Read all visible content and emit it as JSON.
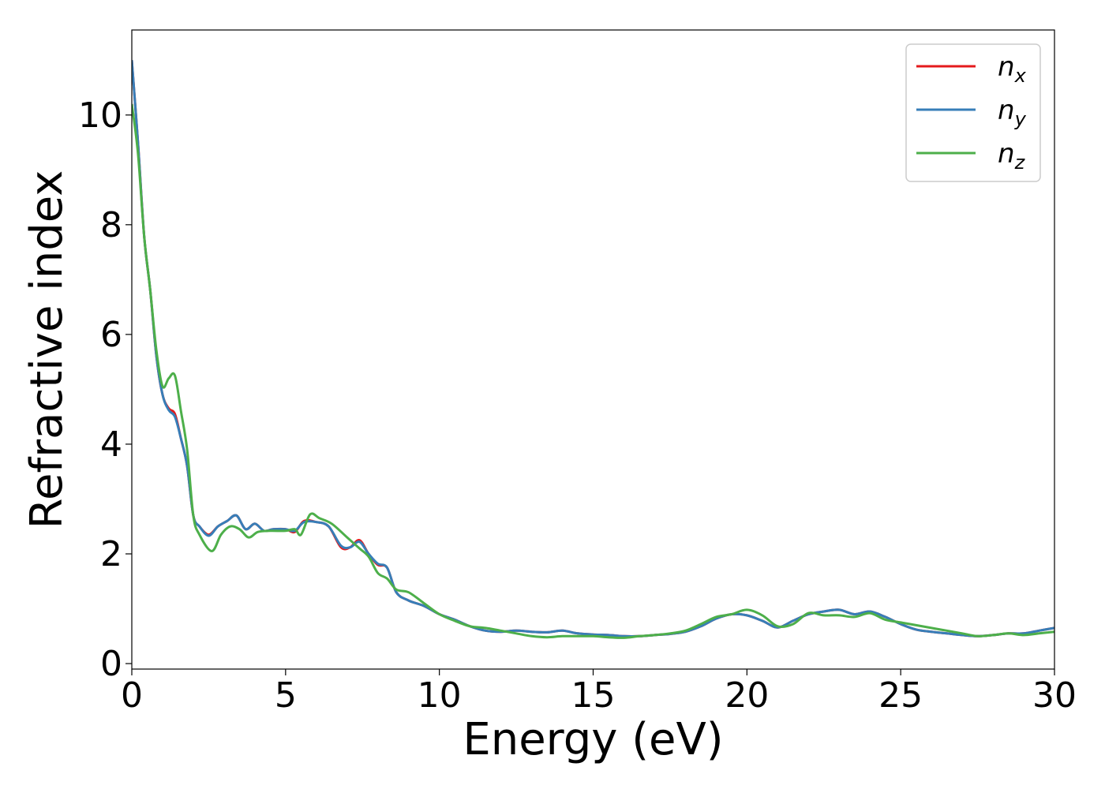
{
  "chart_data": {
    "type": "line",
    "xlabel": "Energy (eV)",
    "ylabel": "Refractive index",
    "xlim": [
      0,
      30
    ],
    "ylim": [
      -0.1,
      11.55
    ],
    "xticks": [
      0,
      5,
      10,
      15,
      20,
      25,
      30
    ],
    "yticks": [
      0,
      2,
      4,
      6,
      8,
      10
    ],
    "xtick_labels": [
      "0",
      "5",
      "10",
      "15",
      "20",
      "25",
      "30"
    ],
    "ytick_labels": [
      "0",
      "2",
      "4",
      "6",
      "8",
      "10"
    ],
    "grid": false,
    "legend_position": "top-right",
    "legend": [
      {
        "base": "n",
        "sub": "x",
        "color": "#e41a1c"
      },
      {
        "base": "n",
        "sub": "y",
        "color": "#377eb8"
      },
      {
        "base": "n",
        "sub": "z",
        "color": "#4daf4a"
      }
    ],
    "series": [
      {
        "name": "n_x",
        "color": "#e41a1c",
        "x": [
          0,
          0.2,
          0.4,
          0.6,
          0.8,
          1.0,
          1.2,
          1.4,
          1.6,
          1.8,
          2.0,
          2.2,
          2.5,
          2.8,
          3.1,
          3.4,
          3.7,
          4.0,
          4.3,
          4.6,
          5.0,
          5.3,
          5.6,
          6.0,
          6.4,
          6.8,
          7.1,
          7.4,
          7.7,
          8.0,
          8.3,
          8.6,
          9.0,
          9.5,
          10.0,
          10.5,
          11.0,
          11.5,
          12.0,
          12.5,
          13.0,
          13.5,
          14.0,
          14.5,
          15.0,
          15.5,
          16.0,
          16.5,
          17.0,
          17.5,
          18.0,
          18.5,
          19.0,
          19.5,
          20.0,
          20.5,
          21.0,
          21.5,
          22.0,
          22.5,
          23.0,
          23.5,
          24.0,
          24.5,
          25.0,
          25.5,
          26.0,
          26.5,
          27.0,
          27.5,
          28.0,
          28.5,
          29.0,
          29.5,
          30.0
        ],
        "y": [
          11.0,
          9.5,
          7.8,
          6.8,
          5.6,
          4.9,
          4.65,
          4.55,
          4.1,
          3.6,
          2.7,
          2.5,
          2.35,
          2.5,
          2.6,
          2.7,
          2.45,
          2.55,
          2.42,
          2.45,
          2.45,
          2.4,
          2.6,
          2.58,
          2.5,
          2.12,
          2.12,
          2.25,
          2.0,
          1.8,
          1.75,
          1.3,
          1.15,
          1.05,
          0.9,
          0.8,
          0.68,
          0.6,
          0.58,
          0.6,
          0.58,
          0.57,
          0.6,
          0.55,
          0.53,
          0.52,
          0.5,
          0.5,
          0.52,
          0.54,
          0.58,
          0.68,
          0.82,
          0.9,
          0.88,
          0.78,
          0.66,
          0.78,
          0.9,
          0.95,
          0.98,
          0.9,
          0.95,
          0.85,
          0.72,
          0.62,
          0.58,
          0.55,
          0.52,
          0.5,
          0.52,
          0.55,
          0.55,
          0.6,
          0.65
        ]
      },
      {
        "name": "n_y",
        "color": "#377eb8",
        "x": [
          0,
          0.2,
          0.4,
          0.6,
          0.8,
          1.0,
          1.2,
          1.4,
          1.6,
          1.8,
          2.0,
          2.2,
          2.5,
          2.8,
          3.1,
          3.4,
          3.7,
          4.0,
          4.3,
          4.6,
          5.0,
          5.3,
          5.6,
          6.0,
          6.4,
          6.8,
          7.1,
          7.4,
          7.7,
          8.0,
          8.3,
          8.6,
          9.0,
          9.5,
          10.0,
          10.5,
          11.0,
          11.5,
          12.0,
          12.5,
          13.0,
          13.5,
          14.0,
          14.5,
          15.0,
          15.5,
          16.0,
          16.5,
          17.0,
          17.5,
          18.0,
          18.5,
          19.0,
          19.5,
          20.0,
          20.5,
          21.0,
          21.5,
          22.0,
          22.5,
          23.0,
          23.5,
          24.0,
          24.5,
          25.0,
          25.5,
          26.0,
          26.5,
          27.0,
          27.5,
          28.0,
          28.5,
          29.0,
          29.5,
          30.0
        ],
        "y": [
          11.0,
          9.5,
          7.8,
          6.8,
          5.6,
          4.9,
          4.62,
          4.5,
          4.1,
          3.6,
          2.7,
          2.5,
          2.33,
          2.5,
          2.6,
          2.7,
          2.45,
          2.55,
          2.42,
          2.45,
          2.45,
          2.42,
          2.58,
          2.58,
          2.5,
          2.15,
          2.12,
          2.22,
          2.0,
          1.82,
          1.75,
          1.3,
          1.15,
          1.05,
          0.9,
          0.8,
          0.68,
          0.6,
          0.58,
          0.6,
          0.58,
          0.57,
          0.6,
          0.55,
          0.53,
          0.52,
          0.5,
          0.5,
          0.52,
          0.54,
          0.58,
          0.68,
          0.82,
          0.9,
          0.88,
          0.78,
          0.66,
          0.78,
          0.9,
          0.95,
          0.98,
          0.9,
          0.95,
          0.85,
          0.72,
          0.62,
          0.58,
          0.55,
          0.52,
          0.5,
          0.52,
          0.55,
          0.55,
          0.6,
          0.65
        ]
      },
      {
        "name": "n_z",
        "color": "#4daf4a",
        "x": [
          0,
          0.2,
          0.4,
          0.6,
          0.8,
          1.0,
          1.2,
          1.4,
          1.6,
          1.8,
          2.0,
          2.2,
          2.6,
          2.9,
          3.2,
          3.5,
          3.8,
          4.1,
          4.5,
          5.0,
          5.3,
          5.5,
          5.8,
          6.1,
          6.5,
          7.0,
          7.4,
          7.7,
          8.0,
          8.3,
          8.6,
          9.0,
          9.5,
          10.0,
          10.5,
          11.0,
          11.5,
          12.0,
          12.5,
          13.0,
          13.5,
          14.0,
          14.5,
          15.0,
          15.5,
          16.0,
          16.5,
          17.0,
          17.5,
          18.0,
          18.5,
          19.0,
          19.5,
          20.0,
          20.5,
          21.0,
          21.5,
          22.0,
          22.5,
          23.0,
          23.5,
          24.0,
          24.5,
          25.0,
          25.5,
          26.0,
          26.5,
          27.0,
          27.5,
          28.0,
          28.5,
          29.0,
          29.5,
          30.0
        ],
        "y": [
          10.2,
          9.3,
          7.8,
          6.8,
          5.7,
          5.05,
          5.2,
          5.25,
          4.6,
          3.9,
          2.7,
          2.35,
          2.05,
          2.35,
          2.5,
          2.45,
          2.3,
          2.4,
          2.42,
          2.42,
          2.45,
          2.35,
          2.72,
          2.65,
          2.55,
          2.3,
          2.1,
          1.95,
          1.65,
          1.55,
          1.35,
          1.3,
          1.1,
          0.9,
          0.78,
          0.68,
          0.65,
          0.6,
          0.55,
          0.5,
          0.48,
          0.5,
          0.5,
          0.5,
          0.48,
          0.47,
          0.5,
          0.52,
          0.55,
          0.6,
          0.72,
          0.85,
          0.9,
          0.98,
          0.88,
          0.68,
          0.72,
          0.92,
          0.88,
          0.88,
          0.85,
          0.92,
          0.8,
          0.75,
          0.7,
          0.65,
          0.6,
          0.55,
          0.5,
          0.52,
          0.55,
          0.52,
          0.55,
          0.58
        ]
      }
    ]
  }
}
